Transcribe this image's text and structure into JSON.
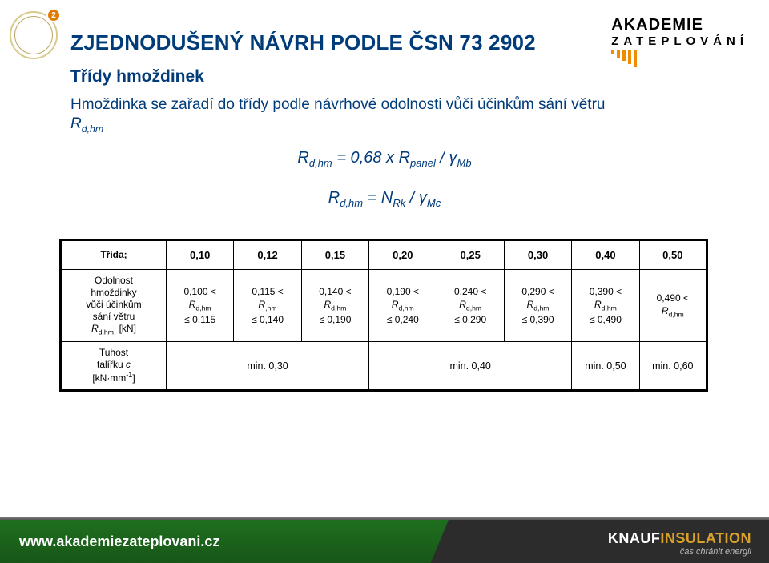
{
  "header": {
    "logo_badge": "2",
    "brand_line1": "AKADEMIE",
    "brand_line2": "ZATEPLOVÁNÍ",
    "brand_bar_heights": [
      6,
      10,
      14,
      18,
      22
    ]
  },
  "title": "ZJEDNODUŠENÝ NÁVRH PODLE ČSN 73 2902",
  "subtitle": "Třídy hmoždinek",
  "intro": "Hmoždinka se zařadí do třídy podle návrhové odolnosti vůči účinkům sání větru",
  "rdhm_html": "R<span class='sub'>d,hm</span>",
  "eq1_html": "R<span class='sub'>d,hm</span> = 0,68 x R<span class='sub'>panel</span> / γ<span class='sub'>Mb</span>",
  "eq2_html": "R<span class='sub'>d,hm</span> = N<span class='sub'>Rk</span> / γ<span class='sub'>Mc</span>",
  "table": {
    "row1_head": "Třída;",
    "classes": [
      "0,10",
      "0,12",
      "0,15",
      "0,20",
      "0,25",
      "0,30",
      "0,40",
      "0,50"
    ],
    "row2_head_html": "Odolnost<br>hmoždinky<br>vůči účinkům<br>sání větru<br><span class='i'>R</span><span class='ssub'>d,hm</span>&nbsp; [kN]",
    "ranges": [
      "0,100 &lt;<br><span class='i'>R</span><span class='ssub'>d,hm</span><br>≤ 0,115",
      "0,115 &lt;<br><span class='i'>R</span><span class='ssub'>,hm</span><br>≤ 0,140",
      "0,140 &lt;<br><span class='i'>R</span><span class='ssub'>d,hm</span><br>≤ 0,190",
      "0,190 &lt;<br><span class='i'>R</span><span class='ssub'>d,hm</span><br>≤ 0,240",
      "0,240 &lt;<br><span class='i'>R</span><span class='ssub'>d,hm</span><br>≤ 0,290",
      "0,290 &lt;<br><span class='i'>R</span><span class='ssub'>d,hm</span><br>≤ 0,390",
      "0,390 &lt;<br><span class='i'>R</span><span class='ssub'>d,hm</span><br>≤ 0,490",
      "0,490 &lt;<br><span class='i'>R</span><span class='ssub'>d,hm</span>"
    ],
    "row3_head_html": "Tuhost<br>talířku <span class='i'>c</span><br>[kN·mm<sup style='font-size:0.75em'>-1</sup>]",
    "row3_cells": [
      {
        "span": 3,
        "text": "min. 0,30"
      },
      {
        "span": 3,
        "text": "min. 0,40"
      },
      {
        "span": 1,
        "text": "min. 0,50"
      },
      {
        "span": 1,
        "text": "min. 0,60"
      }
    ]
  },
  "footer": {
    "url": "www.akademiezateplovani.cz",
    "knauf_html": "KNAUF<span class='o'>INSULATION</span>",
    "knauf_tag": "čas chránit energii"
  }
}
